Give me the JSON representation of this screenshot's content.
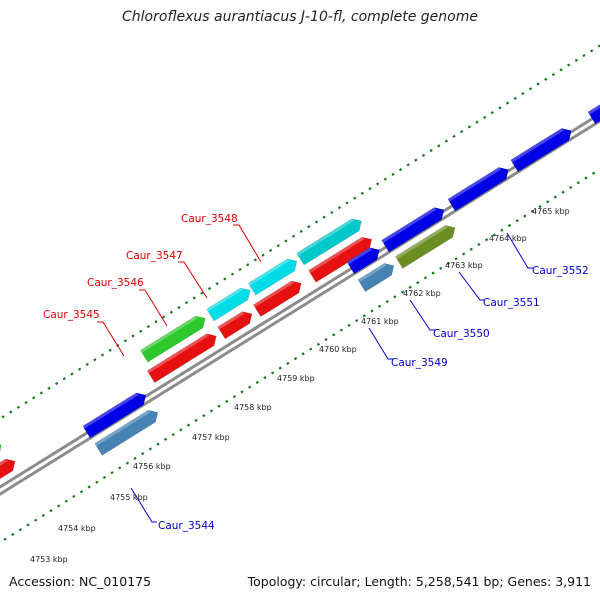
{
  "title": "Chloroflexus aurantiacus J-10-fl, complete genome",
  "footer": {
    "accession": "Accession: NC_010175",
    "summary": "Topology: circular; Length: 5,258,541 bp; Genes: 3,911"
  },
  "colors": {
    "backbone": "#8c8c8c",
    "ticks": "#1a7a1a",
    "label_top": "#dd0000",
    "label_bottom": "#0000cc"
  },
  "ticks": [
    "4753 kbp",
    "4754 kbp",
    "4755 kbp",
    "4756 kbp",
    "4757 kbp",
    "4758 kbp",
    "4759 kbp",
    "4760 kbp",
    "4761 kbp",
    "4762 kbp",
    "4763 kbp",
    "4764 kbp",
    "4765 kbp"
  ],
  "gene_labels_top": [
    "Caur_3545",
    "Caur_3546",
    "Caur_3547",
    "Caur_3548"
  ],
  "gene_labels_bottom": [
    "Caur_3544",
    "Caur_3549",
    "Caur_3550",
    "Caur_3551",
    "Caur_3552"
  ]
}
